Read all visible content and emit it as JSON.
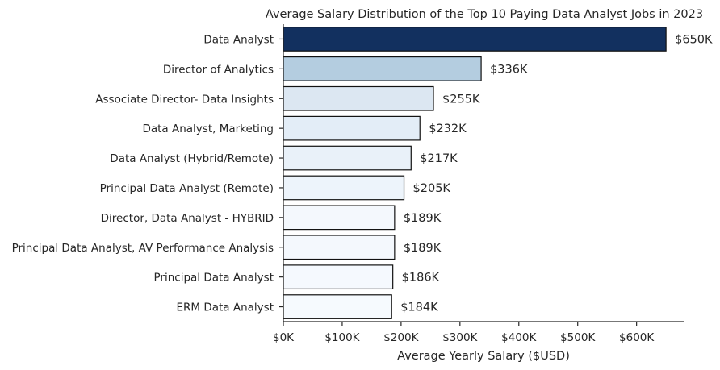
{
  "chart_data": {
    "type": "bar",
    "orientation": "horizontal",
    "title": "Average Salary Distribution of the Top 10 Paying Data Analyst Jobs in 2023",
    "xlabel": "Average Yearly Salary ($USD)",
    "ylabel": "",
    "xlim": [
      0,
      680000
    ],
    "xticks": [
      0,
      100000,
      200000,
      300000,
      400000,
      500000,
      600000
    ],
    "xtick_labels": [
      "$0K",
      "$100K",
      "$200K",
      "$300K",
      "$400K",
      "$500K",
      "$600K"
    ],
    "grid": false,
    "categories": [
      "Data Analyst",
      "Director of Analytics",
      "Associate Director- Data Insights",
      "Data Analyst, Marketing",
      "Data Analyst (Hybrid/Remote)",
      "Principal Data Analyst (Remote)",
      "Director, Data Analyst - HYBRID",
      "Principal Data Analyst, AV Performance Analysis",
      "Principal Data Analyst",
      "ERM Data Analyst"
    ],
    "values": [
      650000,
      336000,
      255000,
      232000,
      217000,
      205000,
      189000,
      189000,
      186000,
      184000
    ],
    "value_labels": [
      "$650K",
      "$336K",
      "$255K",
      "$232K",
      "$217K",
      "$205K",
      "$189K",
      "$189K",
      "$186K",
      "$184K"
    ],
    "colors": [
      "#12305f",
      "#b4cde0",
      "#dce7f2",
      "#e3edf7",
      "#e9f1f9",
      "#edf4fb",
      "#f4f8fd",
      "#f4f8fd",
      "#f5f9fe",
      "#f6fafe"
    ]
  }
}
